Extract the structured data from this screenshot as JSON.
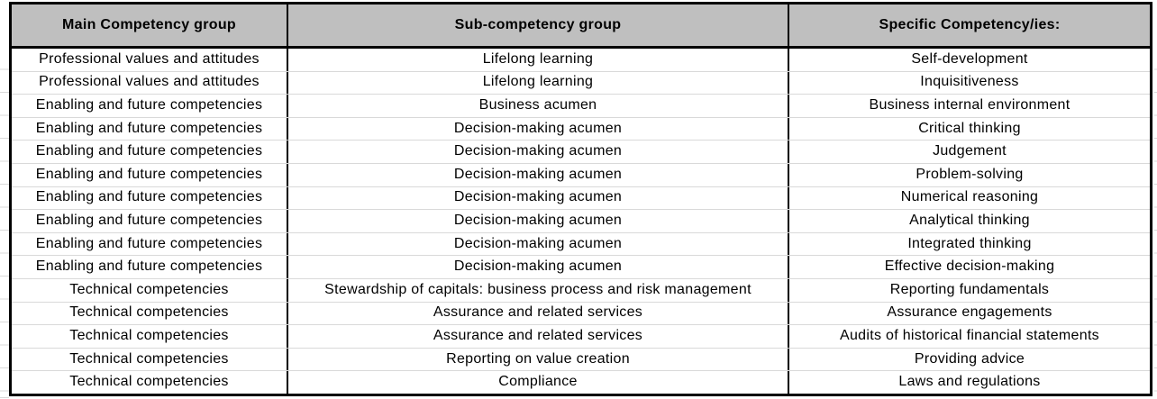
{
  "table": {
    "columns": [
      "Main Competency group",
      "Sub-competency group",
      "Specific Competency/ies:"
    ],
    "rows": [
      [
        "Professional values and attitudes",
        "Lifelong learning",
        "Self-development"
      ],
      [
        "Professional values and attitudes",
        "Lifelong learning",
        "Inquisitiveness"
      ],
      [
        "Enabling and future competencies",
        "Business acumen",
        "Business internal environment"
      ],
      [
        "Enabling and future competencies",
        "Decision-making acumen",
        "Critical thinking"
      ],
      [
        "Enabling and future competencies",
        "Decision-making acumen",
        "Judgement"
      ],
      [
        "Enabling and future competencies",
        "Decision-making acumen",
        "Problem-solving"
      ],
      [
        "Enabling and future competencies",
        "Decision-making acumen",
        "Numerical reasoning"
      ],
      [
        "Enabling and future competencies",
        "Decision-making acumen",
        "Analytical thinking"
      ],
      [
        "Enabling and future competencies",
        "Decision-making acumen",
        "Integrated thinking"
      ],
      [
        "Enabling and future competencies",
        "Decision-making acumen",
        "Effective decision-making"
      ],
      [
        "Technical competencies",
        "Stewardship of capitals: business process and risk management",
        "Reporting fundamentals"
      ],
      [
        "Technical competencies",
        "Assurance and related services",
        "Assurance engagements"
      ],
      [
        "Technical competencies",
        "Assurance and related services",
        "Audits of historical financial statements"
      ],
      [
        "Technical competencies",
        "Reporting on value creation",
        "Providing advice"
      ],
      [
        "Technical competencies",
        "Compliance",
        "Laws and regulations"
      ]
    ],
    "colors": {
      "header_bg": "#bfbfbf",
      "border": "#000000",
      "row_separator": "#d9d9d9",
      "text": "#000000"
    }
  }
}
